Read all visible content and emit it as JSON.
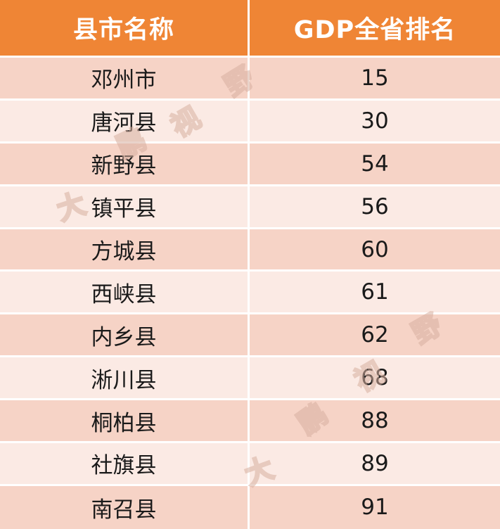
{
  "table": {
    "headers": [
      "县市名称",
      "GDP全省排名"
    ],
    "rows": [
      {
        "name": "邓州市",
        "rank": "15"
      },
      {
        "name": "唐河县",
        "rank": "30"
      },
      {
        "name": "新野县",
        "rank": "54"
      },
      {
        "name": "镇平县",
        "rank": "56"
      },
      {
        "name": "方城县",
        "rank": "60"
      },
      {
        "name": "西峡县",
        "rank": "61"
      },
      {
        "name": "内乡县",
        "rank": "62"
      },
      {
        "name": "淅川县",
        "rank": "68"
      },
      {
        "name": "桐柏县",
        "rank": "88"
      },
      {
        "name": "社旗县",
        "rank": "89"
      },
      {
        "name": "南召县",
        "rank": "91"
      }
    ]
  },
  "colors": {
    "header_bg": "#ef8535",
    "row_dark": "#f6d3c6",
    "row_light": "#fbeae4"
  },
  "watermark": {
    "chars": [
      "大",
      "鹏",
      "视",
      "野"
    ]
  }
}
